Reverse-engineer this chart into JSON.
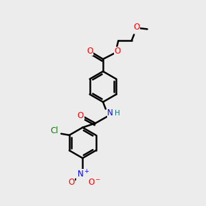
{
  "bg_color": "#ececec",
  "bond_color": "#000000",
  "bond_width": 1.8,
  "atom_colors": {
    "O": "#ff0000",
    "N": "#0000ff",
    "Cl": "#008000",
    "NH": "#0000ff",
    "H": "#008080"
  },
  "font_size": 8.5,
  "fig_size": [
    3.0,
    3.0
  ],
  "dpi": 100
}
